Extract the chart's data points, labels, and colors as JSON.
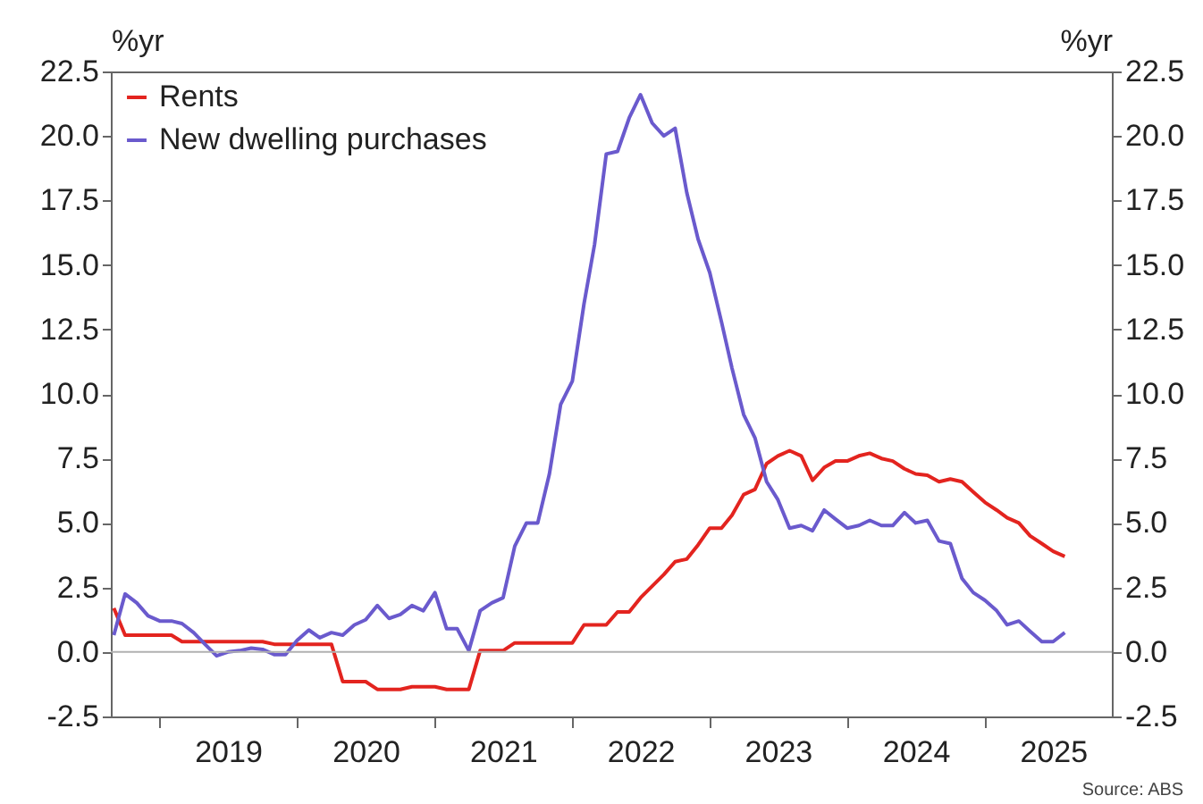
{
  "chart_data": {
    "type": "line",
    "ylabel": "%yr",
    "y2label": "%yr",
    "annotations": [
      "Source: ABS"
    ],
    "series": [
      {
        "name": "Rents",
        "color": "#e3241f",
        "x": [
          "2018-09",
          "2018-10",
          "2019-02",
          "2019-03",
          "2019-10",
          "2019-11",
          "2020-04",
          "2020-05",
          "2020-07",
          "2020-08",
          "2020-10",
          "2020-11",
          "2021-01",
          "2021-02",
          "2021-04",
          "2021-05",
          "2021-07",
          "2021-08",
          "2022-01",
          "2022-02",
          "2022-04",
          "2022-05",
          "2022-06",
          "2022-07",
          "2022-08",
          "2022-09",
          "2022-10",
          "2022-11",
          "2022-12",
          "2023-01",
          "2023-02",
          "2023-03",
          "2023-04",
          "2023-05",
          "2023-06",
          "2023-07",
          "2023-08",
          "2023-09",
          "2023-10",
          "2023-11",
          "2023-12",
          "2024-01",
          "2024-02",
          "2024-03",
          "2024-04",
          "2024-05",
          "2024-06",
          "2024-07",
          "2024-08",
          "2024-09",
          "2024-10",
          "2024-11",
          "2024-12",
          "2025-01",
          "2025-02",
          "2025-03",
          "2025-04",
          "2025-05",
          "2025-06",
          "2025-07",
          "2025-08"
        ],
        "values": [
          1.7,
          0.65,
          0.65,
          0.4,
          0.4,
          0.3,
          0.3,
          -1.15,
          -1.15,
          -1.45,
          -1.45,
          -1.35,
          -1.35,
          -1.45,
          -1.45,
          0.05,
          0.05,
          0.35,
          0.35,
          1.05,
          1.05,
          1.55,
          1.55,
          2.1,
          2.55,
          3.0,
          3.5,
          3.6,
          4.15,
          4.8,
          4.8,
          5.3,
          6.1,
          6.3,
          7.3,
          7.6,
          7.8,
          7.6,
          6.65,
          7.15,
          7.4,
          7.4,
          7.6,
          7.7,
          7.5,
          7.4,
          7.1,
          6.9,
          6.85,
          6.6,
          6.7,
          6.6,
          6.2,
          5.8,
          5.5,
          5.2,
          5.0,
          4.5,
          4.2,
          3.9,
          3.7
        ]
      },
      {
        "name": "New dwelling purchases",
        "color": "#6a5acd",
        "x": [
          "2018-09",
          "2018-10",
          "2018-11",
          "2018-12",
          "2019-01",
          "2019-02",
          "2019-03",
          "2019-04",
          "2019-05",
          "2019-06",
          "2019-07",
          "2019-08",
          "2019-09",
          "2019-10",
          "2019-11",
          "2019-12",
          "2020-01",
          "2020-02",
          "2020-03",
          "2020-04",
          "2020-05",
          "2020-06",
          "2020-07",
          "2020-08",
          "2020-09",
          "2020-10",
          "2020-11",
          "2020-12",
          "2021-01",
          "2021-02",
          "2021-03",
          "2021-04",
          "2021-05",
          "2021-06",
          "2021-07",
          "2021-08",
          "2021-09",
          "2021-10",
          "2021-11",
          "2021-12",
          "2022-01",
          "2022-02",
          "2022-03",
          "2022-04",
          "2022-05",
          "2022-06",
          "2022-07",
          "2022-08",
          "2022-09",
          "2022-10",
          "2022-11",
          "2022-12",
          "2023-01",
          "2023-02",
          "2023-03",
          "2023-04",
          "2023-05",
          "2023-06",
          "2023-07",
          "2023-08",
          "2023-09",
          "2023-10",
          "2023-11",
          "2023-12",
          "2024-01",
          "2024-02",
          "2024-03",
          "2024-04",
          "2024-05",
          "2024-06",
          "2024-07",
          "2024-08",
          "2024-09",
          "2024-10",
          "2024-11",
          "2024-12",
          "2025-01",
          "2025-02",
          "2025-03",
          "2025-04",
          "2025-05",
          "2025-06",
          "2025-07",
          "2025-08"
        ],
        "values": [
          0.65,
          2.25,
          1.9,
          1.4,
          1.2,
          1.2,
          1.1,
          0.75,
          0.3,
          -0.15,
          0.0,
          0.05,
          0.15,
          0.1,
          -0.1,
          -0.1,
          0.45,
          0.85,
          0.55,
          0.75,
          0.65,
          1.05,
          1.25,
          1.8,
          1.3,
          1.45,
          1.8,
          1.6,
          2.3,
          0.9,
          0.9,
          0.05,
          1.6,
          1.9,
          2.1,
          4.1,
          5.0,
          5.0,
          6.9,
          9.6,
          10.5,
          13.5,
          15.8,
          19.3,
          19.4,
          20.7,
          21.6,
          20.5,
          20.0,
          20.3,
          17.8,
          16.0,
          14.7,
          12.8,
          11.0,
          9.2,
          8.3,
          6.6,
          5.9,
          4.8,
          4.9,
          4.7,
          5.5,
          5.15,
          4.8,
          4.9,
          5.1,
          4.9,
          4.9,
          5.4,
          5.0,
          5.1,
          4.3,
          4.2,
          2.85,
          2.3,
          2.0,
          1.6,
          1.05,
          1.2,
          0.8,
          0.4,
          0.4,
          0.75
        ]
      }
    ],
    "xlim": [
      "2018-08-24",
      "2025-12-04"
    ],
    "xticks": [
      {
        "value": "2019-01",
        "label": null
      },
      {
        "value": "2019-07",
        "label": "2019"
      },
      {
        "value": "2020-01",
        "label": null
      },
      {
        "value": "2020-07",
        "label": "2020"
      },
      {
        "value": "2021-01",
        "label": null
      },
      {
        "value": "2021-07",
        "label": "2021"
      },
      {
        "value": "2022-01",
        "label": null
      },
      {
        "value": "2022-07",
        "label": "2022"
      },
      {
        "value": "2023-01",
        "label": null
      },
      {
        "value": "2023-07",
        "label": "2023"
      },
      {
        "value": "2024-01",
        "label": null
      },
      {
        "value": "2024-07",
        "label": "2024"
      },
      {
        "value": "2025-01",
        "label": null
      },
      {
        "value": "2025-07",
        "label": "2025"
      }
    ],
    "ylim": [
      -2.5,
      22.5
    ],
    "yticks": [
      -2.5,
      {
        "value": 0,
        "label": "0.0"
      },
      2.5,
      {
        "value": 5,
        "label": "5.0"
      },
      7.5,
      {
        "value": 10,
        "label": "10.0"
      },
      12.5,
      {
        "value": 15,
        "label": "15.0"
      },
      17.5,
      {
        "value": 20,
        "label": "20.0"
      },
      22.5
    ],
    "y2lim": [
      -2.5,
      22.5
    ],
    "y2ticks": [
      -2.5,
      {
        "value": 0,
        "label": "0.0"
      },
      2.5,
      {
        "value": 5,
        "label": "5.0"
      },
      7.5,
      {
        "value": 10,
        "label": "10.0"
      },
      12.5,
      {
        "value": 15,
        "label": "15.0"
      },
      17.5,
      {
        "value": 20,
        "label": "20.0"
      },
      22.5
    ],
    "ref_lines": [
      {
        "axis": "y",
        "value": 0,
        "color": "#b0b0b0"
      }
    ],
    "grid": false,
    "legend": "top left"
  }
}
